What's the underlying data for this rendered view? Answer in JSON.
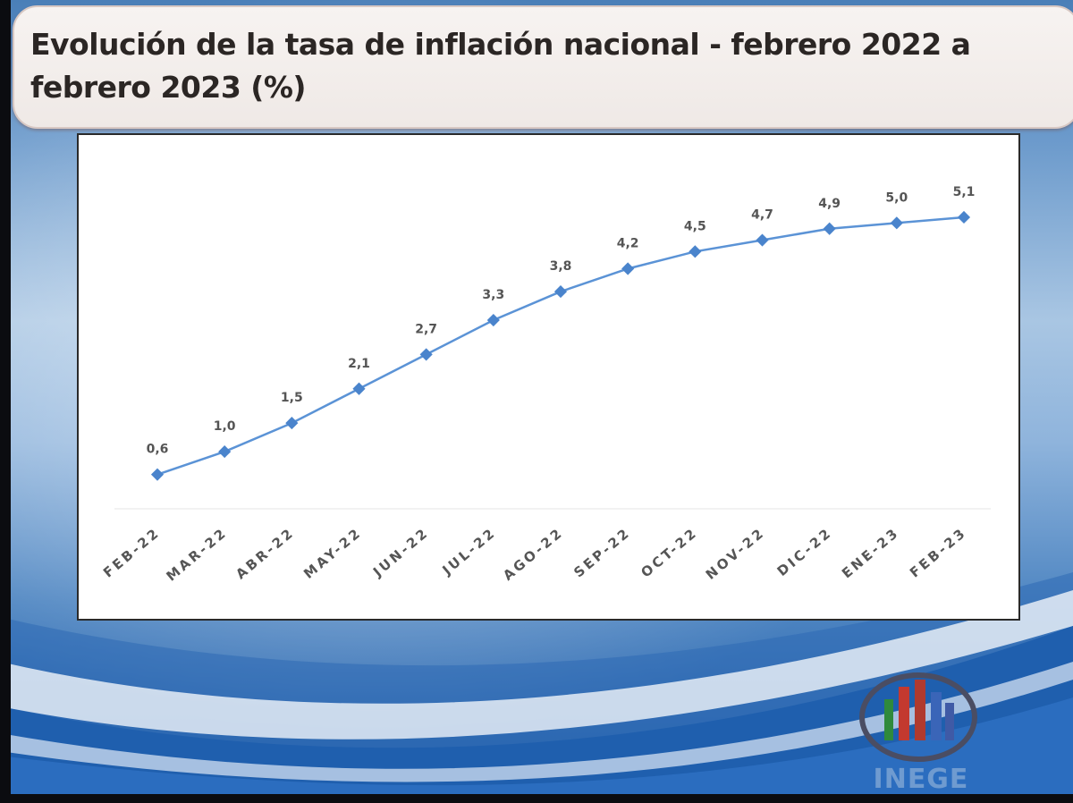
{
  "slide": {
    "title": "Evolución de la tasa de inflación nacional - febrero 2022 a febrero 2023 (%)"
  },
  "logo": {
    "text": "INEGE",
    "icon": "bar-chart-circle-icon"
  },
  "colors": {
    "line": "#5b93d6",
    "marker": "#4a84cc",
    "label": "#555555",
    "title": "#2b2624"
  },
  "chart_data": {
    "type": "line",
    "title": "Evolución de la tasa de inflación nacional - febrero 2022 a febrero 2023 (%)",
    "xlabel": "",
    "ylabel": "",
    "categories": [
      "FEB-22",
      "MAR-22",
      "ABR-22",
      "MAY-22",
      "JUN-22",
      "JUL-22",
      "AGO-22",
      "SEP-22",
      "OCT-22",
      "NOV-22",
      "DIC-22",
      "ENE-23",
      "FEB-23"
    ],
    "values": [
      0.6,
      1.0,
      1.5,
      2.1,
      2.7,
      3.3,
      3.8,
      4.2,
      4.5,
      4.7,
      4.9,
      5.0,
      5.1
    ],
    "data_labels": [
      "0,6",
      "1,0",
      "1,5",
      "2,1",
      "2,7",
      "3,3",
      "3,8",
      "4,2",
      "4,5",
      "4,7",
      "4,9",
      "5,0",
      "5,1"
    ],
    "ylim": [
      0,
      5.6
    ],
    "grid": false,
    "legend": "none"
  }
}
